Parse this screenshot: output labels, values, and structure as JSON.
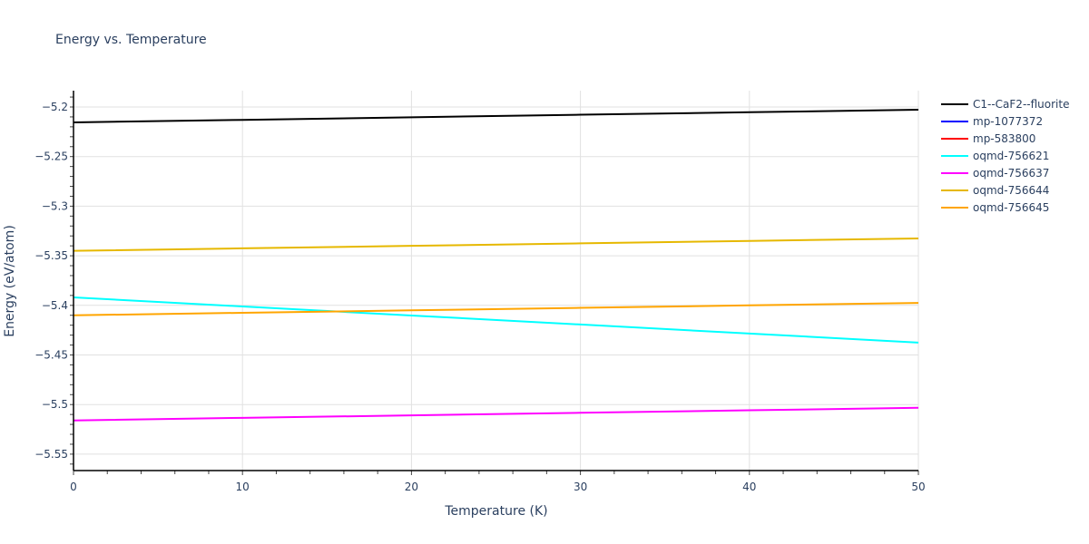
{
  "chart": {
    "title": "Energy vs. Temperature",
    "xlabel": "Temperature (K)",
    "ylabel": "Energy (eV/atom)"
  },
  "axes": {
    "x_ticks": [
      "0",
      "10",
      "20",
      "30",
      "40",
      "50"
    ],
    "y_ticks": [
      "−5.2",
      "−5.25",
      "−5.3",
      "−5.35",
      "−5.4",
      "−5.45",
      "−5.5",
      "−5.55"
    ]
  },
  "legend": {
    "items": [
      {
        "label": "C1--CaF2--fluorite",
        "color": "#000000"
      },
      {
        "label": "mp-1077372",
        "color": "#0000ff"
      },
      {
        "label": "mp-583800",
        "color": "#ff0000"
      },
      {
        "label": "oqmd-756621",
        "color": "#00ffff"
      },
      {
        "label": "oqmd-756637",
        "color": "#ff00ff"
      },
      {
        "label": "oqmd-756644",
        "color": "#e6b800"
      },
      {
        "label": "oqmd-756645",
        "color": "#ffa500"
      }
    ]
  },
  "chart_data": {
    "type": "line",
    "title": "Energy vs. Temperature",
    "xlabel": "Temperature (K)",
    "ylabel": "Energy (eV/atom)",
    "xlim": [
      0,
      50
    ],
    "ylim": [
      -5.566,
      -5.183
    ],
    "x_ticks": [
      0,
      10,
      20,
      30,
      40,
      50
    ],
    "y_ticks": [
      -5.2,
      -5.25,
      -5.3,
      -5.35,
      -5.4,
      -5.45,
      -5.5,
      -5.55
    ],
    "grid": true,
    "legend_position": "right",
    "x": [
      0,
      10,
      20,
      30,
      40,
      50
    ],
    "series": [
      {
        "name": "C1--CaF2--fluorite",
        "color": "#000000",
        "values": [
          -5.2155,
          -5.213,
          -5.2104,
          -5.2078,
          -5.2053,
          -5.2027
        ]
      },
      {
        "name": "mp-1077372",
        "color": "#0000ff",
        "values": []
      },
      {
        "name": "mp-583800",
        "color": "#ff0000",
        "values": []
      },
      {
        "name": "oqmd-756621",
        "color": "#00ffff",
        "values": [
          -5.392,
          -5.4011,
          -5.4102,
          -5.4193,
          -5.4284,
          -5.4375
        ]
      },
      {
        "name": "oqmd-756637",
        "color": "#ff00ff",
        "values": [
          -5.516,
          -5.5134,
          -5.5109,
          -5.5083,
          -5.5058,
          -5.5032
        ]
      },
      {
        "name": "oqmd-756644",
        "color": "#e6b800",
        "values": [
          -5.345,
          -5.3425,
          -5.34,
          -5.3375,
          -5.335,
          -5.3325
        ]
      },
      {
        "name": "oqmd-756645",
        "color": "#ffa500",
        "values": [
          -5.41,
          -5.4075,
          -5.405,
          -5.4025,
          -5.4,
          -5.3975
        ]
      }
    ]
  }
}
